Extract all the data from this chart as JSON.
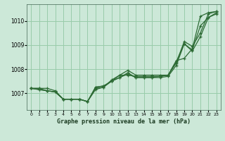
{
  "background_color": "#cce8d8",
  "grid_color": "#99ccaa",
  "line_color": "#2d6b35",
  "title": "Graphe pression niveau de la mer (hPa)",
  "xlim": [
    -0.5,
    23.5
  ],
  "ylim": [
    1006.3,
    1010.7
  ],
  "yticks": [
    1007,
    1008,
    1009,
    1010
  ],
  "xticks": [
    0,
    1,
    2,
    3,
    4,
    5,
    6,
    7,
    8,
    9,
    10,
    11,
    12,
    13,
    14,
    15,
    16,
    17,
    18,
    19,
    20,
    21,
    22,
    23
  ],
  "series": [
    [
      1007.2,
      1007.2,
      1007.2,
      1007.1,
      1006.75,
      1006.75,
      1006.75,
      1006.65,
      1007.2,
      1007.25,
      1007.5,
      1007.65,
      1007.8,
      1007.65,
      1007.65,
      1007.65,
      1007.7,
      1007.75,
      1008.35,
      1008.45,
      1008.85,
      1010.2,
      1010.35,
      1010.4
    ],
    [
      1007.2,
      1007.2,
      1007.1,
      1007.05,
      1006.75,
      1006.75,
      1006.75,
      1006.65,
      1007.15,
      1007.25,
      1007.55,
      1007.75,
      1007.95,
      1007.75,
      1007.75,
      1007.75,
      1007.75,
      1007.75,
      1008.25,
      1009.15,
      1008.95,
      1009.5,
      1010.3,
      1010.4
    ],
    [
      1007.2,
      1007.15,
      1007.1,
      1007.05,
      1006.75,
      1006.75,
      1006.75,
      1006.65,
      1007.25,
      1007.3,
      1007.5,
      1007.65,
      1007.85,
      1007.65,
      1007.65,
      1007.65,
      1007.65,
      1007.7,
      1008.15,
      1009.05,
      1008.8,
      1009.8,
      1010.15,
      1010.35
    ],
    [
      1007.2,
      1007.15,
      1007.1,
      1007.05,
      1006.75,
      1006.75,
      1006.75,
      1006.65,
      1007.25,
      1007.3,
      1007.5,
      1007.75,
      1007.75,
      1007.7,
      1007.7,
      1007.7,
      1007.7,
      1007.75,
      1008.3,
      1009.05,
      1008.75,
      1009.35,
      1010.15,
      1010.3
    ]
  ]
}
